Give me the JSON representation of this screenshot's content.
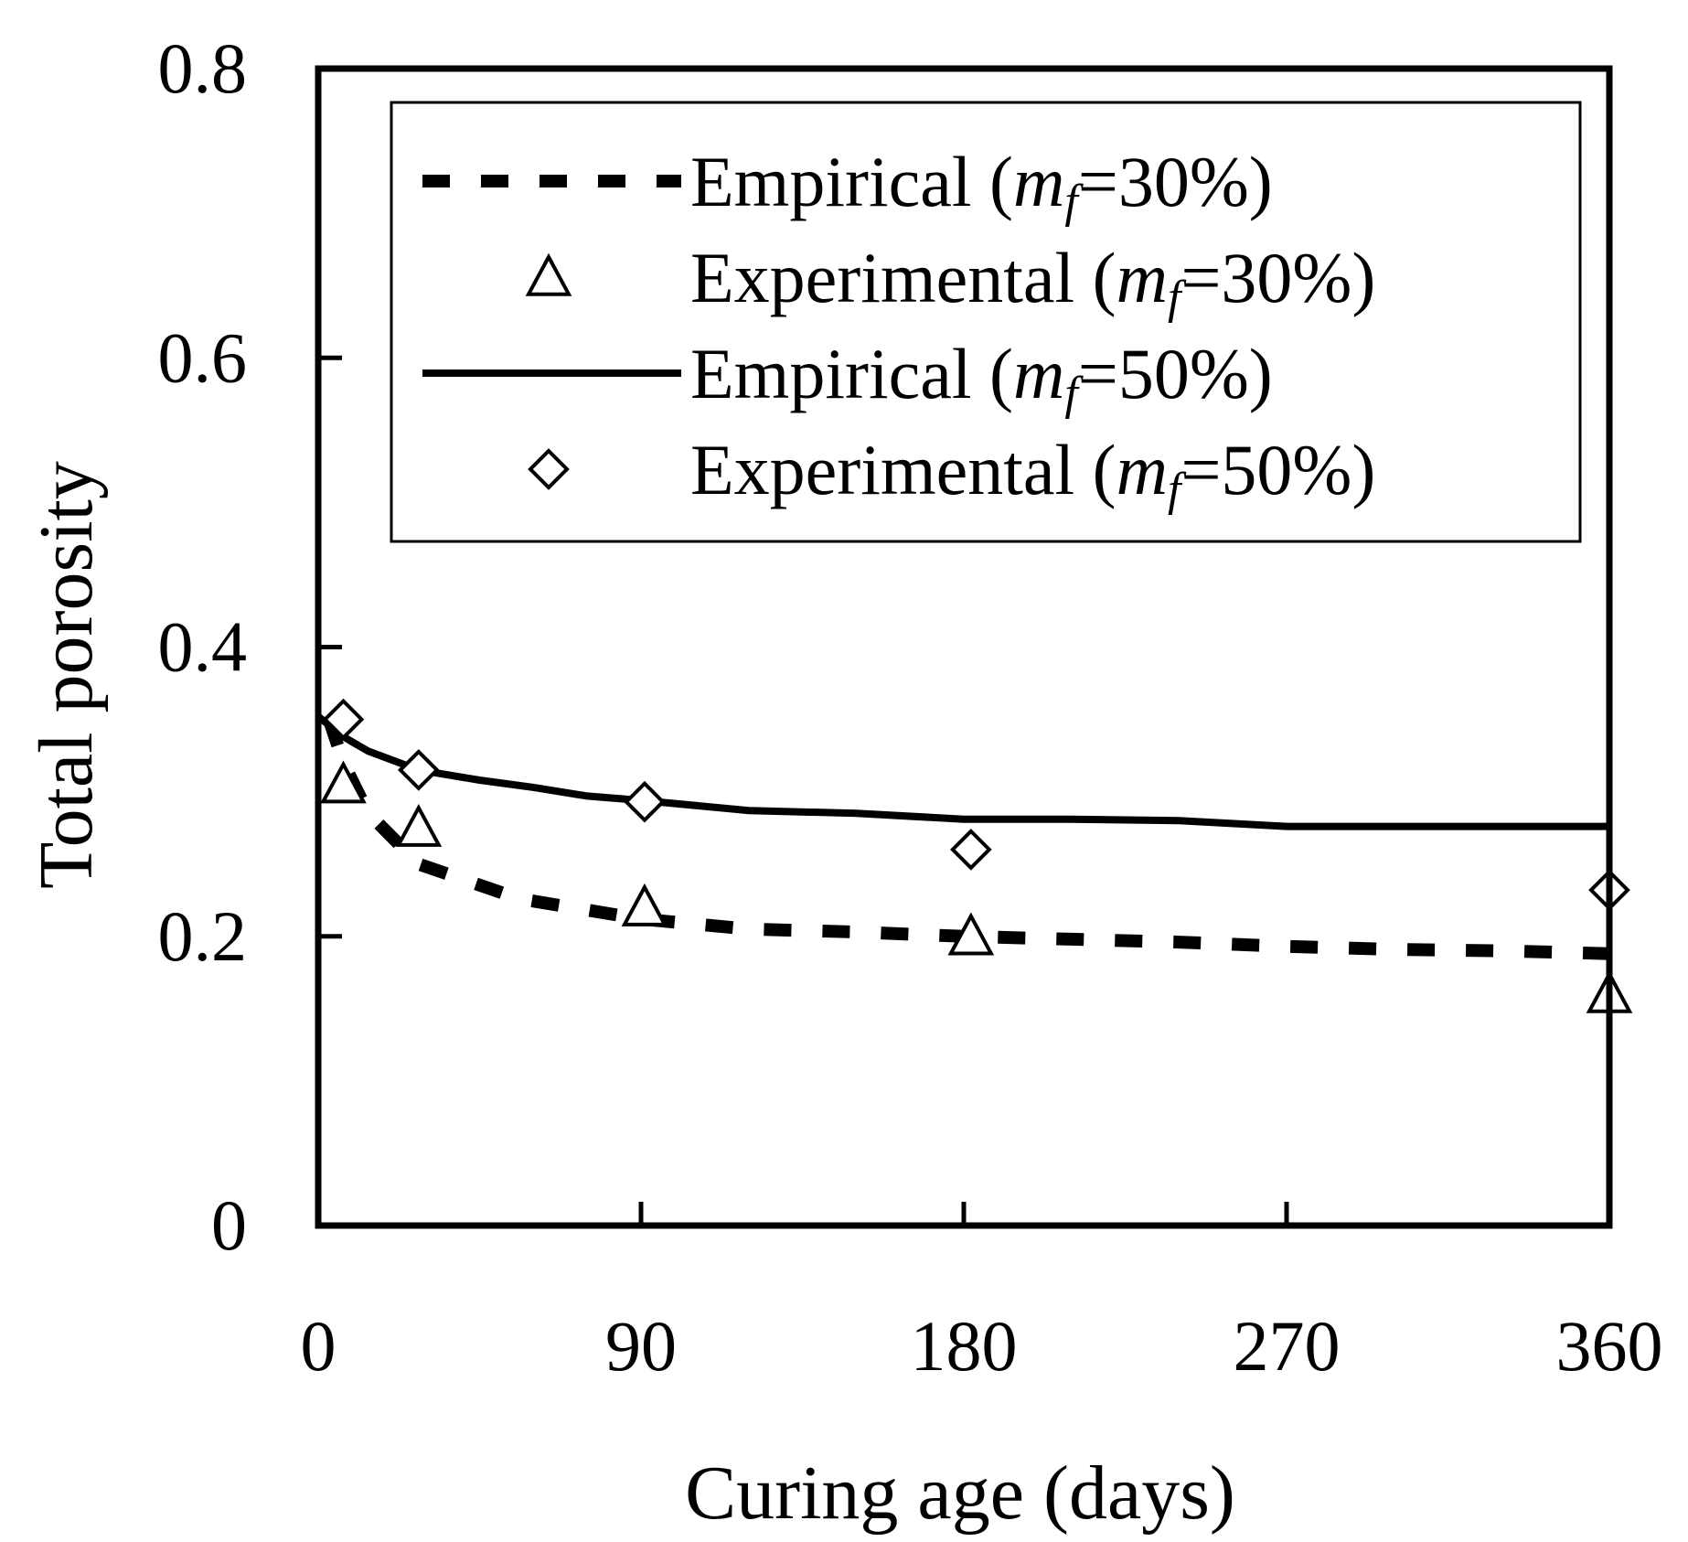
{
  "chart_data": {
    "type": "line",
    "title": "",
    "xlabel": "Curing age (days)",
    "ylabel": "Total porosity",
    "xlim": [
      0,
      360
    ],
    "ylim": [
      0,
      0.8
    ],
    "xticks": [
      0,
      90,
      180,
      270,
      360
    ],
    "xtick_labels": [
      "0",
      "90",
      "180",
      "270",
      "360"
    ],
    "yticks": [
      0,
      0.2,
      0.4,
      0.6,
      0.8
    ],
    "ytick_labels": [
      "0",
      "0.2",
      "0.4",
      "0.6",
      "0.8"
    ],
    "grid": false,
    "legend_position": "top-right",
    "series": [
      {
        "name": "Empirical (mf=30%)",
        "legend_main": "Empirical (",
        "legend_var": "m",
        "legend_sub": "f",
        "legend_tail": "=30%)",
        "kind": "line",
        "style": "dashed",
        "x": [
          3,
          7,
          14,
          28,
          56,
          90,
          120,
          150,
          180,
          210,
          240,
          270,
          300,
          330,
          360
        ],
        "y": [
          0.35,
          0.32,
          0.285,
          0.25,
          0.226,
          0.212,
          0.205,
          0.203,
          0.2,
          0.198,
          0.196,
          0.193,
          0.191,
          0.19,
          0.188
        ]
      },
      {
        "name": "Experimental (mf=30%)",
        "legend_main": "Experimental (",
        "legend_var": "m",
        "legend_sub": "f",
        "legend_tail": "=30%)",
        "kind": "marker",
        "marker": "triangle",
        "x": [
          7,
          28,
          91,
          182,
          360
        ],
        "y": [
          0.305,
          0.275,
          0.22,
          0.2,
          0.16
        ]
      },
      {
        "name": "Empirical (mf=50%)",
        "legend_main": "Empirical (",
        "legend_var": "m",
        "legend_sub": "f",
        "legend_tail": "=50%)",
        "kind": "line",
        "style": "solid",
        "x": [
          0,
          7,
          14,
          28,
          45,
          60,
          75,
          90,
          120,
          150,
          180,
          210,
          240,
          270,
          300,
          330,
          360
        ],
        "y": [
          0.352,
          0.338,
          0.328,
          0.315,
          0.308,
          0.303,
          0.297,
          0.294,
          0.287,
          0.285,
          0.281,
          0.281,
          0.28,
          0.276,
          0.276,
          0.276,
          0.276
        ]
      },
      {
        "name": "Experimental (mf=50%)",
        "legend_main": "Experimental (",
        "legend_var": "m",
        "legend_sub": "f",
        "legend_tail": "=50%)",
        "kind": "marker",
        "marker": "diamond",
        "x": [
          7,
          28,
          91,
          182,
          360
        ],
        "y": [
          0.35,
          0.315,
          0.293,
          0.26,
          0.232
        ]
      }
    ]
  }
}
